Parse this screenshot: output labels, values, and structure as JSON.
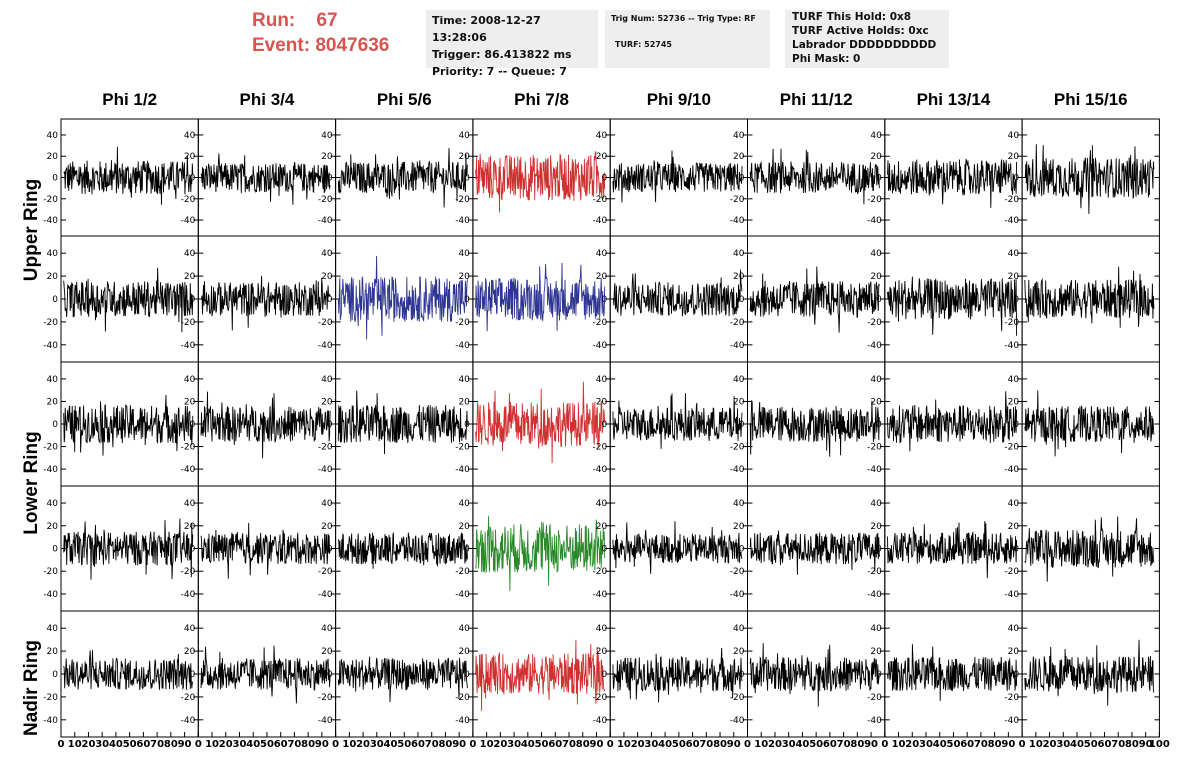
{
  "header": {
    "run_label": "Run:",
    "run_value": "67",
    "event_label": "Event:",
    "event_value": "8047636"
  },
  "info_time": {
    "time": "Time: 2008-12-27 13:28:06",
    "trigger": "Trigger: 86.413822 ms",
    "priority": "Priority: 7 -- Queue: 7"
  },
  "info_trig": {
    "trig": "Trig Num: 52736 -- Trig Type: RF",
    "turf": "TURF: 52745"
  },
  "info_turf": {
    "hold": "TURF This Hold: 0x8",
    "active": "TURF Active Holds: 0xc",
    "labrador": "Labrador DDDDDDDDDD",
    "phimask": "Phi Mask: 0"
  },
  "colors": {
    "black": "#000000",
    "red": "#d03030",
    "blue": "#2e3592",
    "green": "#2a8a2a"
  },
  "chart_data": {
    "type": "line",
    "columns": [
      "Phi 1/2",
      "Phi 3/4",
      "Phi 5/6",
      "Phi 7/8",
      "Phi 9/10",
      "Phi 11/12",
      "Phi 13/14",
      "Phi 15/16"
    ],
    "ring_labels": [
      "Upper Ring",
      "Lower Ring",
      "Nadir Ring"
    ],
    "y_ticks": [
      40,
      20,
      0,
      -20,
      -40
    ],
    "ylim": [
      -55,
      55
    ],
    "x_ticks": [
      0,
      10,
      20,
      30,
      40,
      50,
      60,
      70,
      80,
      90,
      100
    ],
    "xlim": [
      0,
      100
    ],
    "rows": [
      {
        "colors": [
          "black",
          "black",
          "black",
          "red",
          "black",
          "black",
          "black",
          "black"
        ],
        "amplitudes": [
          16,
          14,
          15,
          22,
          14,
          15,
          17,
          19
        ]
      },
      {
        "colors": [
          "black",
          "black",
          "blue",
          "blue",
          "black",
          "black",
          "black",
          "black"
        ],
        "amplitudes": [
          16,
          15,
          20,
          19,
          15,
          16,
          18,
          17
        ]
      },
      {
        "colors": [
          "black",
          "black",
          "black",
          "red",
          "black",
          "black",
          "black",
          "black"
        ],
        "amplitudes": [
          17,
          16,
          17,
          20,
          15,
          16,
          17,
          16
        ]
      },
      {
        "colors": [
          "black",
          "black",
          "black",
          "green",
          "black",
          "black",
          "black",
          "black"
        ],
        "amplitudes": [
          15,
          14,
          14,
          22,
          13,
          14,
          14,
          17
        ]
      },
      {
        "colors": [
          "black",
          "black",
          "black",
          "red",
          "black",
          "black",
          "black",
          "black"
        ],
        "amplitudes": [
          14,
          14,
          14,
          18,
          15,
          15,
          15,
          16
        ]
      }
    ]
  }
}
